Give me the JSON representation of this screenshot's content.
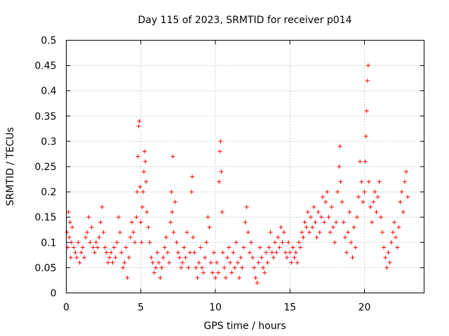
{
  "chart_data": {
    "type": "scatter",
    "title": "Day 115 of 2023, SRMTID for receiver p014",
    "xlabel": "GPS time / hours",
    "ylabel": "SRMTID / TECUs",
    "xlim": [
      0,
      24
    ],
    "ylim": [
      0,
      0.5
    ],
    "xticks": [
      0,
      5,
      10,
      15,
      20
    ],
    "xtick_labels": [
      "0",
      "5",
      "10",
      "15",
      "20"
    ],
    "yticks": [
      0,
      0.05,
      0.1,
      0.15,
      0.2,
      0.25,
      0.3,
      0.35,
      0.4,
      0.45,
      0.5
    ],
    "ytick_labels": [
      "0",
      "0.05",
      "0.1",
      "0.15",
      "0.2",
      "0.25",
      "0.3",
      "0.35",
      "0.4",
      "0.45",
      "0.5"
    ],
    "grid": true,
    "marker": "+",
    "color": "#ff0000",
    "series": [
      {
        "name": "SRMTID",
        "points": [
          [
            0.05,
            0.12
          ],
          [
            0.1,
            0.09
          ],
          [
            0.15,
            0.16
          ],
          [
            0.2,
            0.11
          ],
          [
            0.25,
            0.14
          ],
          [
            0.3,
            0.07
          ],
          [
            0.35,
            0.1
          ],
          [
            0.4,
            0.13
          ],
          [
            0.5,
            0.09
          ],
          [
            0.6,
            0.08
          ],
          [
            0.7,
            0.07
          ],
          [
            0.8,
            0.1
          ],
          [
            0.9,
            0.06
          ],
          [
            1.0,
            0.08
          ],
          [
            1.1,
            0.09
          ],
          [
            1.2,
            0.07
          ],
          [
            1.3,
            0.11
          ],
          [
            1.4,
            0.12
          ],
          [
            1.5,
            0.15
          ],
          [
            1.6,
            0.1
          ],
          [
            1.7,
            0.13
          ],
          [
            1.8,
            0.09
          ],
          [
            1.9,
            0.08
          ],
          [
            2.0,
            0.1
          ],
          [
            2.1,
            0.09
          ],
          [
            2.2,
            0.11
          ],
          [
            2.3,
            0.14
          ],
          [
            2.4,
            0.17
          ],
          [
            2.5,
            0.12
          ],
          [
            2.6,
            0.09
          ],
          [
            2.7,
            0.08
          ],
          [
            2.8,
            0.06
          ],
          [
            2.9,
            0.07
          ],
          [
            3.0,
            0.08
          ],
          [
            3.1,
            0.06
          ],
          [
            3.2,
            0.09
          ],
          [
            3.3,
            0.07
          ],
          [
            3.4,
            0.1
          ],
          [
            3.5,
            0.15
          ],
          [
            3.6,
            0.12
          ],
          [
            3.7,
            0.08
          ],
          [
            3.8,
            0.05
          ],
          [
            3.9,
            0.06
          ],
          [
            4.0,
            0.09
          ],
          [
            4.1,
            0.03
          ],
          [
            4.2,
            0.07
          ],
          [
            4.3,
            0.11
          ],
          [
            4.4,
            0.14
          ],
          [
            4.5,
            0.12
          ],
          [
            4.6,
            0.1
          ],
          [
            4.7,
            0.15
          ],
          [
            4.75,
            0.2
          ],
          [
            4.8,
            0.27
          ],
          [
            4.85,
            0.33
          ],
          [
            4.9,
            0.34
          ],
          [
            4.95,
            0.21
          ],
          [
            5.0,
            0.14
          ],
          [
            5.05,
            0.1
          ],
          [
            5.1,
            0.17
          ],
          [
            5.15,
            0.2
          ],
          [
            5.2,
            0.24
          ],
          [
            5.25,
            0.28
          ],
          [
            5.3,
            0.26
          ],
          [
            5.35,
            0.22
          ],
          [
            5.4,
            0.16
          ],
          [
            5.5,
            0.13
          ],
          [
            5.6,
            0.1
          ],
          [
            5.7,
            0.07
          ],
          [
            5.8,
            0.06
          ],
          [
            5.9,
            0.04
          ],
          [
            6.0,
            0.05
          ],
          [
            6.1,
            0.08
          ],
          [
            6.2,
            0.06
          ],
          [
            6.3,
            0.03
          ],
          [
            6.4,
            0.05
          ],
          [
            6.5,
            0.07
          ],
          [
            6.6,
            0.09
          ],
          [
            6.7,
            0.11
          ],
          [
            6.8,
            0.08
          ],
          [
            6.9,
            0.06
          ],
          [
            7.0,
            0.14
          ],
          [
            7.05,
            0.2
          ],
          [
            7.1,
            0.16
          ],
          [
            7.15,
            0.27
          ],
          [
            7.2,
            0.12
          ],
          [
            7.3,
            0.18
          ],
          [
            7.4,
            0.1
          ],
          [
            7.5,
            0.08
          ],
          [
            7.6,
            0.07
          ],
          [
            7.7,
            0.05
          ],
          [
            7.8,
            0.06
          ],
          [
            7.9,
            0.09
          ],
          [
            8.0,
            0.07
          ],
          [
            8.1,
            0.12
          ],
          [
            8.2,
            0.05
          ],
          [
            8.3,
            0.08
          ],
          [
            8.4,
            0.2
          ],
          [
            8.45,
            0.23
          ],
          [
            8.5,
            0.11
          ],
          [
            8.6,
            0.08
          ],
          [
            8.7,
            0.05
          ],
          [
            8.8,
            0.03
          ],
          [
            8.9,
            0.06
          ],
          [
            9.0,
            0.09
          ],
          [
            9.1,
            0.05
          ],
          [
            9.2,
            0.04
          ],
          [
            9.3,
            0.07
          ],
          [
            9.4,
            0.1
          ],
          [
            9.5,
            0.15
          ],
          [
            9.6,
            0.13
          ],
          [
            9.7,
            0.06
          ],
          [
            9.8,
            0.04
          ],
          [
            9.9,
            0.08
          ],
          [
            10.0,
            0.03
          ],
          [
            10.1,
            0.06
          ],
          [
            10.2,
            0.04
          ],
          [
            10.25,
            0.22
          ],
          [
            10.3,
            0.28
          ],
          [
            10.35,
            0.3
          ],
          [
            10.4,
            0.24
          ],
          [
            10.45,
            0.16
          ],
          [
            10.5,
            0.08
          ],
          [
            10.6,
            0.05
          ],
          [
            10.7,
            0.03
          ],
          [
            10.8,
            0.07
          ],
          [
            10.9,
            0.09
          ],
          [
            11.0,
            0.06
          ],
          [
            11.1,
            0.04
          ],
          [
            11.2,
            0.08
          ],
          [
            11.3,
            0.05
          ],
          [
            11.4,
            0.1
          ],
          [
            11.5,
            0.06
          ],
          [
            11.6,
            0.03
          ],
          [
            11.7,
            0.07
          ],
          [
            11.8,
            0.05
          ],
          [
            11.9,
            0.09
          ],
          [
            12.0,
            0.14
          ],
          [
            12.1,
            0.17
          ],
          [
            12.2,
            0.12
          ],
          [
            12.3,
            0.08
          ],
          [
            12.4,
            0.1
          ],
          [
            12.5,
            0.07
          ],
          [
            12.6,
            0.05
          ],
          [
            12.7,
            0.03
          ],
          [
            12.8,
            0.02
          ],
          [
            12.9,
            0.06
          ],
          [
            13.0,
            0.09
          ],
          [
            13.1,
            0.07
          ],
          [
            13.2,
            0.05
          ],
          [
            13.3,
            0.04
          ],
          [
            13.4,
            0.08
          ],
          [
            13.5,
            0.06
          ],
          [
            13.6,
            0.09
          ],
          [
            13.7,
            0.12
          ],
          [
            13.8,
            0.08
          ],
          [
            13.9,
            0.07
          ],
          [
            14.0,
            0.1
          ],
          [
            14.1,
            0.08
          ],
          [
            14.2,
            0.11
          ],
          [
            14.3,
            0.09
          ],
          [
            14.4,
            0.13
          ],
          [
            14.5,
            0.1
          ],
          [
            14.6,
            0.12
          ],
          [
            14.7,
            0.08
          ],
          [
            14.8,
            0.07
          ],
          [
            14.9,
            0.1
          ],
          [
            15.0,
            0.08
          ],
          [
            15.1,
            0.06
          ],
          [
            15.2,
            0.09
          ],
          [
            15.3,
            0.07
          ],
          [
            15.4,
            0.08
          ],
          [
            15.5,
            0.06
          ],
          [
            15.6,
            0.1
          ],
          [
            15.7,
            0.09
          ],
          [
            15.8,
            0.12
          ],
          [
            15.9,
            0.11
          ],
          [
            16.0,
            0.14
          ],
          [
            16.1,
            0.13
          ],
          [
            16.2,
            0.16
          ],
          [
            16.3,
            0.12
          ],
          [
            16.4,
            0.15
          ],
          [
            16.5,
            0.13
          ],
          [
            16.6,
            0.17
          ],
          [
            16.7,
            0.14
          ],
          [
            16.8,
            0.11
          ],
          [
            16.9,
            0.16
          ],
          [
            17.0,
            0.12
          ],
          [
            17.1,
            0.15
          ],
          [
            17.2,
            0.19
          ],
          [
            17.3,
            0.14
          ],
          [
            17.4,
            0.18
          ],
          [
            17.5,
            0.2
          ],
          [
            17.6,
            0.15
          ],
          [
            17.7,
            0.12
          ],
          [
            17.8,
            0.17
          ],
          [
            17.9,
            0.13
          ],
          [
            18.0,
            0.1
          ],
          [
            18.1,
            0.14
          ],
          [
            18.2,
            0.2
          ],
          [
            18.3,
            0.25
          ],
          [
            18.35,
            0.29
          ],
          [
            18.4,
            0.22
          ],
          [
            18.5,
            0.18
          ],
          [
            18.6,
            0.14
          ],
          [
            18.7,
            0.11
          ],
          [
            18.8,
            0.08
          ],
          [
            18.9,
            0.12
          ],
          [
            19.0,
            0.16
          ],
          [
            19.1,
            0.1
          ],
          [
            19.2,
            0.07
          ],
          [
            19.3,
            0.13
          ],
          [
            19.4,
            0.09
          ],
          [
            19.5,
            0.15
          ],
          [
            19.6,
            0.19
          ],
          [
            19.7,
            0.26
          ],
          [
            19.8,
            0.22
          ],
          [
            19.9,
            0.18
          ],
          [
            20.0,
            0.2
          ],
          [
            20.05,
            0.26
          ],
          [
            20.1,
            0.31
          ],
          [
            20.15,
            0.36
          ],
          [
            20.2,
            0.42
          ],
          [
            20.25,
            0.45
          ],
          [
            20.3,
            0.22
          ],
          [
            20.4,
            0.17
          ],
          [
            20.5,
            0.14
          ],
          [
            20.6,
            0.18
          ],
          [
            20.7,
            0.2
          ],
          [
            20.8,
            0.16
          ],
          [
            20.9,
            0.19
          ],
          [
            21.0,
            0.22
          ],
          [
            21.1,
            0.15
          ],
          [
            21.2,
            0.12
          ],
          [
            21.3,
            0.09
          ],
          [
            21.4,
            0.07
          ],
          [
            21.5,
            0.05
          ],
          [
            21.6,
            0.08
          ],
          [
            21.7,
            0.06
          ],
          [
            21.8,
            0.1
          ],
          [
            21.9,
            0.12
          ],
          [
            22.0,
            0.14
          ],
          [
            22.1,
            0.11
          ],
          [
            22.2,
            0.09
          ],
          [
            22.3,
            0.13
          ],
          [
            22.4,
            0.18
          ],
          [
            22.5,
            0.2
          ],
          [
            22.6,
            0.16
          ],
          [
            22.7,
            0.22
          ],
          [
            22.8,
            0.24
          ],
          [
            22.9,
            0.19
          ]
        ]
      }
    ]
  }
}
